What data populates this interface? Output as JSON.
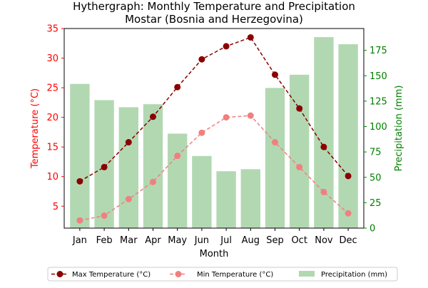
{
  "chart_data": {
    "type": "bar",
    "title": "Hythergraph: Monthly Temperature and Precipitation",
    "subtitle": "Mostar (Bosnia and Herzegovina)",
    "xlabel": "Month",
    "ylabel_left": "Temperature (°C)",
    "ylabel_right": "Precipitation (mm)",
    "categories": [
      "Jan",
      "Feb",
      "Mar",
      "Apr",
      "May",
      "Jun",
      "Jul",
      "Aug",
      "Sep",
      "Oct",
      "Nov",
      "Dec"
    ],
    "temperature_ylim": [
      1.3,
      35
    ],
    "precipitation_ylim": [
      0,
      196.5
    ],
    "temperature_ticks": [
      5,
      10,
      15,
      20,
      25,
      30,
      35
    ],
    "precipitation_ticks": [
      0,
      25,
      50,
      75,
      100,
      125,
      150,
      175
    ],
    "series": [
      {
        "name": "Max Temperature (°C)",
        "kind": "line",
        "axis": "left",
        "color": "#8b0000",
        "style": "dashed",
        "values": [
          9.2,
          11.6,
          15.8,
          20.1,
          25.1,
          29.8,
          32.0,
          33.5,
          27.2,
          21.5,
          15.0,
          10.1
        ]
      },
      {
        "name": "Min Temperature (°C)",
        "kind": "line",
        "axis": "left",
        "color": "#f08080",
        "style": "dashed",
        "values": [
          2.6,
          3.4,
          6.2,
          9.1,
          13.5,
          17.4,
          20.0,
          20.3,
          15.8,
          11.6,
          7.4,
          3.8
        ]
      },
      {
        "name": "Precipitation (mm)",
        "kind": "bar",
        "axis": "right",
        "color": "#b2d8b2",
        "values": [
          142,
          126,
          119,
          122,
          93,
          71,
          56,
          58,
          138,
          151,
          188,
          181
        ]
      }
    ],
    "left_axis_color": "#ff0000",
    "right_axis_color": "#008000",
    "grid": false,
    "legend_position": "bottom"
  }
}
